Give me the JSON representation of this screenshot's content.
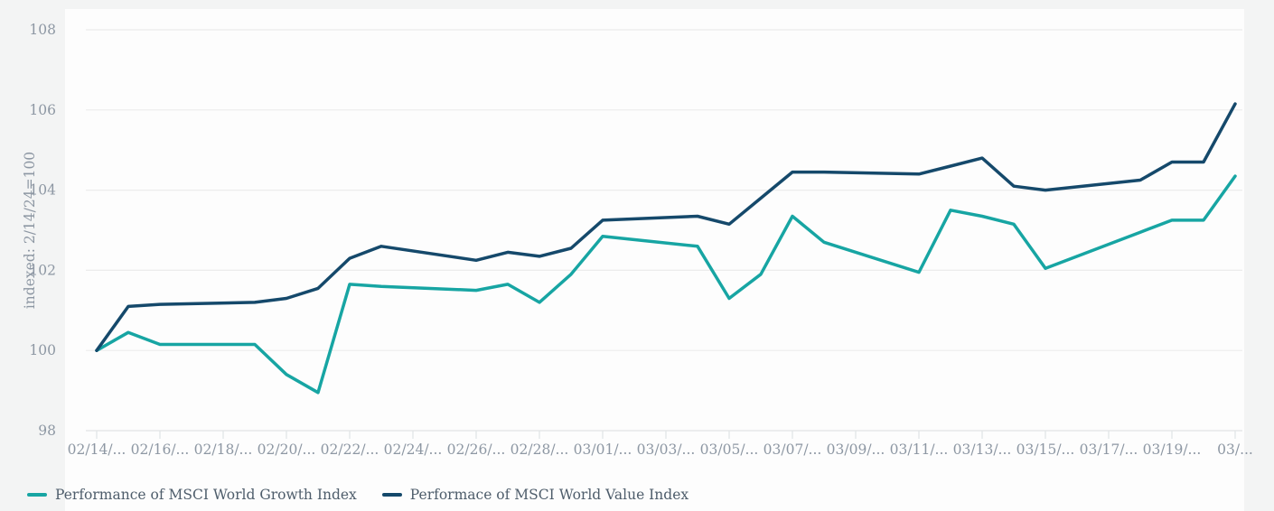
{
  "page": {
    "background_color": "#f3f4f4",
    "panel_color": "#fdfdfd"
  },
  "chart_data": {
    "type": "line",
    "title": "",
    "xlabel": "",
    "ylabel": "indexed: 2/14/24=100",
    "ylim": [
      98,
      108
    ],
    "yticks": [
      98,
      100,
      102,
      104,
      106,
      108
    ],
    "grid": "horizontal",
    "legend_position": "bottom-left",
    "x": [
      "02/14",
      "02/15",
      "02/16",
      "02/19",
      "02/20",
      "02/21",
      "02/22",
      "02/23",
      "02/26",
      "02/27",
      "02/28",
      "02/29",
      "03/01",
      "03/04",
      "03/05",
      "03/06",
      "03/07",
      "03/08",
      "03/11",
      "03/12",
      "03/13",
      "03/14",
      "03/15",
      "03/18",
      "03/19",
      "03/20",
      "03/21"
    ],
    "xtick_labels": [
      "02/14/...",
      "02/16/...",
      "02/18/...",
      "02/20/...",
      "02/22/...",
      "02/24/...",
      "02/26/...",
      "02/28/...",
      "03/01/...",
      "03/03/...",
      "03/05/...",
      "03/07/...",
      "03/09/...",
      "03/11/...",
      "03/13/...",
      "03/15/...",
      "03/17/...",
      "03/19/...",
      "03/..."
    ],
    "series": [
      {
        "name": "Performance of MSCI World Growth Index",
        "color": "#17a5a3",
        "values": [
          100,
          100.45,
          100.15,
          100.15,
          99.4,
          98.95,
          101.65,
          101.6,
          101.5,
          101.65,
          101.2,
          101.9,
          102.85,
          102.6,
          101.3,
          101.9,
          103.35,
          102.7,
          101.95,
          103.5,
          103.35,
          103.15,
          102.05,
          102.95,
          103.25,
          103.25,
          104.35
        ]
      },
      {
        "name": "Performace of MSCI World Value Index",
        "color": "#15496b",
        "values": [
          100,
          101.1,
          101.15,
          101.2,
          101.3,
          101.55,
          102.3,
          102.6,
          102.25,
          102.45,
          102.35,
          102.55,
          103.25,
          103.35,
          103.15,
          103.8,
          104.45,
          104.45,
          104.4,
          104.6,
          104.8,
          104.1,
          104.0,
          104.25,
          104.7,
          104.7,
          106.15
        ]
      }
    ],
    "style": {
      "grid_color": "#ececec",
      "axis_line_color": "#e2e4e5",
      "tick_mark_color": "#dfe3e6",
      "tick_text_color": "#8d97a3",
      "line_width": 3.5
    }
  }
}
